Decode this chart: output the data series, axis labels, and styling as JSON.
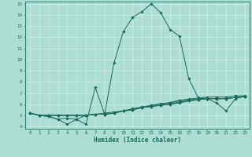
{
  "xlabel": "Humidex (Indice chaleur)",
  "xlim": [
    -0.5,
    23.5
  ],
  "ylim": [
    3.8,
    15.2
  ],
  "yticks": [
    4,
    5,
    6,
    7,
    8,
    9,
    10,
    11,
    12,
    13,
    14,
    15
  ],
  "xticks": [
    0,
    1,
    2,
    3,
    4,
    5,
    6,
    7,
    8,
    9,
    10,
    11,
    12,
    13,
    14,
    15,
    16,
    17,
    18,
    19,
    20,
    21,
    22,
    23
  ],
  "bg_color": "#aeddd4",
  "grid_color": "#c8ede8",
  "line_color": "#1a6b5a",
  "lines": [
    [
      5.2,
      5.0,
      4.9,
      4.65,
      4.2,
      4.65,
      4.2,
      7.5,
      5.1,
      9.7,
      12.5,
      13.8,
      14.3,
      15.0,
      14.2,
      12.7,
      12.1,
      8.3,
      6.6,
      6.5,
      6.1,
      5.4,
      6.5,
      6.7
    ],
    [
      5.2,
      5.0,
      5.0,
      5.0,
      5.0,
      5.0,
      5.0,
      5.1,
      5.1,
      5.2,
      5.4,
      5.5,
      5.7,
      5.8,
      5.9,
      6.0,
      6.2,
      6.3,
      6.4,
      6.5,
      6.5,
      6.5,
      6.6,
      6.7
    ],
    [
      5.2,
      5.0,
      5.0,
      5.0,
      5.0,
      5.0,
      5.0,
      5.1,
      5.1,
      5.2,
      5.4,
      5.6,
      5.75,
      5.9,
      6.05,
      6.15,
      6.35,
      6.45,
      6.55,
      6.65,
      6.65,
      6.65,
      6.75,
      6.75
    ],
    [
      5.2,
      5.0,
      5.0,
      5.0,
      5.0,
      5.0,
      5.0,
      5.1,
      5.1,
      5.2,
      5.4,
      5.5,
      5.7,
      5.8,
      5.9,
      6.0,
      6.1,
      6.3,
      6.4,
      6.5,
      6.5,
      6.5,
      6.6,
      6.7
    ],
    [
      5.2,
      5.0,
      4.9,
      4.65,
      4.75,
      4.65,
      5.0,
      5.1,
      5.2,
      5.3,
      5.4,
      5.5,
      5.7,
      5.9,
      6.0,
      6.1,
      6.3,
      6.4,
      6.5,
      6.5,
      6.5,
      6.5,
      6.6,
      6.7
    ]
  ]
}
